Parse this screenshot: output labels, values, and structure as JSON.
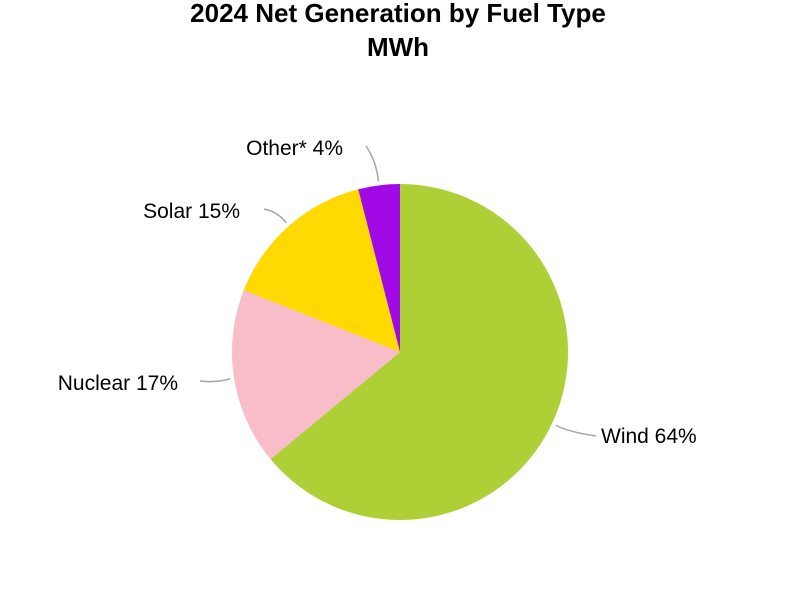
{
  "chart_data": {
    "type": "pie",
    "title": "2024 Net Generation by Fuel Type",
    "subtitle": "MWh",
    "slices": [
      {
        "name": "Wind",
        "value": 64,
        "label": "Wind 64%",
        "color": "#aecf35"
      },
      {
        "name": "Nuclear",
        "value": 17,
        "label": "Nuclear 17%",
        "color": "#f9bdca"
      },
      {
        "name": "Solar",
        "value": 15,
        "label": "Solar 15%",
        "color": "#ffd900"
      },
      {
        "name": "Other*",
        "value": 4,
        "label": "Other* 4%",
        "color": "#a10ae6"
      }
    ],
    "legend": "none",
    "grid": false
  }
}
